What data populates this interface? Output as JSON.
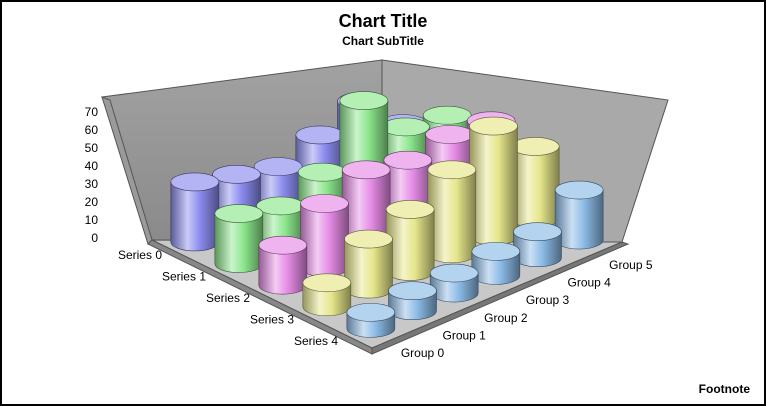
{
  "chart_data": {
    "type": "bar",
    "subtype": "3d-cylinder",
    "title": "Chart Title",
    "subtitle": "Chart SubTitle",
    "footnote": "Footnote",
    "ylim": [
      0,
      70
    ],
    "yticks": [
      "0",
      "10",
      "20",
      "30",
      "40",
      "50",
      "60",
      "70"
    ],
    "series_axis_labels": [
      "Series 0",
      "Series 1",
      "Series 2",
      "Series 3",
      "Series 4"
    ],
    "categories": [
      "Group 0",
      "Group 1",
      "Group 2",
      "Group 3",
      "Group 4",
      "Group 5"
    ],
    "series": [
      {
        "name": "Series 0",
        "color": "#8c8cf0",
        "values": [
          30,
          25,
          20,
          27,
          35,
          15
        ]
      },
      {
        "name": "Series 1",
        "color": "#8ce68c",
        "values": [
          25,
          20,
          28,
          55,
          33,
          30
        ]
      },
      {
        "name": "Series 2",
        "color": "#e68ce6",
        "values": [
          20,
          32,
          40,
          36,
          40,
          38
        ]
      },
      {
        "name": "Series 3",
        "color": "#e6e68c",
        "values": [
          12,
          25,
          31,
          42,
          55,
          36
        ]
      },
      {
        "name": "Series 4",
        "color": "#8cbbe6",
        "values": [
          8,
          10,
          10,
          12,
          13,
          25
        ]
      }
    ],
    "grid": false,
    "legend": "none"
  }
}
